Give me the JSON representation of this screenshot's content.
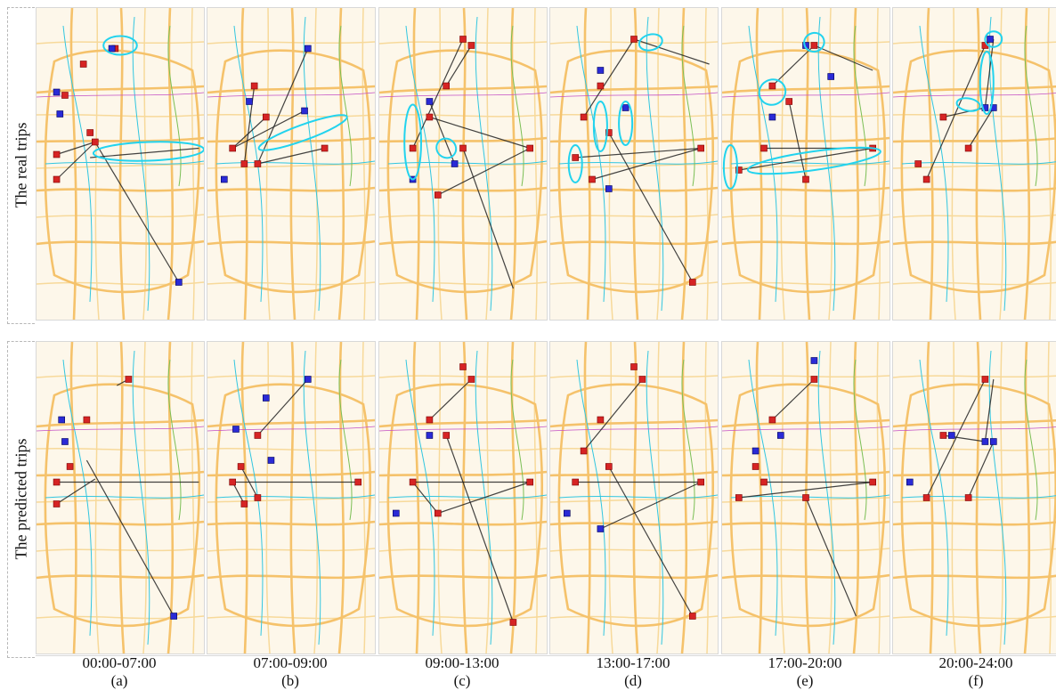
{
  "figure": {
    "row_labels": [
      "The real trips",
      "The predicted trips"
    ],
    "columns": [
      {
        "time": "00:00-07:00",
        "letter": "(a)"
      },
      {
        "time": "07:00-09:00",
        "letter": "(b)"
      },
      {
        "time": "09:00-13:00",
        "letter": "(c)"
      },
      {
        "time": "13:00-17:00",
        "letter": "(d)"
      },
      {
        "time": "17:00-20:00",
        "letter": "(e)"
      },
      {
        "time": "20:00-24:00",
        "letter": "(f)"
      }
    ]
  },
  "colors": {
    "map_background": "#fdf7ea",
    "major_road": "#f5c26b",
    "minor_road": "#f7d99a",
    "transit_line_cyan": "#31c6e0",
    "transit_line_green": "#7bbf55",
    "transit_line_purple": "#c44fc4",
    "origin_marker": "#d62424",
    "destination_marker": "#2a2ad6",
    "trip_line": "#222222",
    "highlight_ellipse": "#22d3ee"
  }
}
